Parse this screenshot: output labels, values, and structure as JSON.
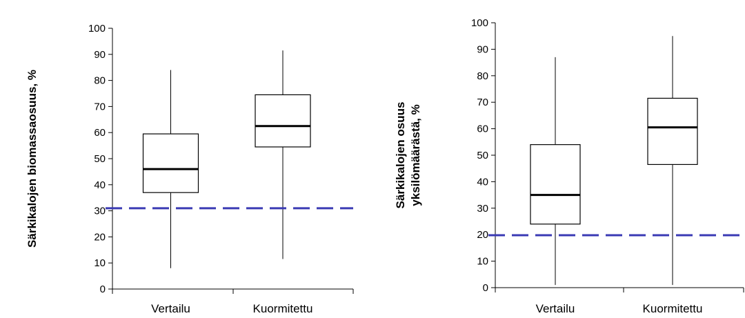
{
  "chart_data": [
    {
      "type": "box",
      "ylabel": "Särkikalojen biomassaosuus, %",
      "ylim": [
        0,
        100
      ],
      "yticks": [
        0,
        10,
        20,
        30,
        40,
        50,
        60,
        70,
        80,
        90,
        100
      ],
      "categories": [
        "Vertailu",
        "Kuormitettu"
      ],
      "boxes": [
        {
          "category": "Vertailu",
          "min": 8,
          "q1": 37,
          "median": 46,
          "q3": 59.5,
          "max": 84
        },
        {
          "category": "Kuormitettu",
          "min": 11.5,
          "q1": 54.5,
          "median": 62.5,
          "q3": 74.5,
          "max": 91.5
        }
      ],
      "reference_line": {
        "value": 31,
        "color": "#3a3ab4",
        "style": "dashed"
      }
    },
    {
      "type": "box",
      "ylabel": [
        "Särkikalojen osuus",
        "yksilömäärästä, %"
      ],
      "ylim": [
        0,
        100
      ],
      "yticks": [
        0,
        10,
        20,
        30,
        40,
        50,
        60,
        70,
        80,
        90,
        100
      ],
      "categories": [
        "Vertailu",
        "Kuormitettu"
      ],
      "boxes": [
        {
          "category": "Vertailu",
          "min": 1,
          "q1": 24,
          "median": 35,
          "q3": 54,
          "max": 87
        },
        {
          "category": "Kuormitettu",
          "min": 1,
          "q1": 46.5,
          "median": 60.5,
          "q3": 71.5,
          "max": 95
        }
      ],
      "reference_line": {
        "value": 19.8,
        "color": "#3a3ab4",
        "style": "dashed"
      }
    }
  ]
}
